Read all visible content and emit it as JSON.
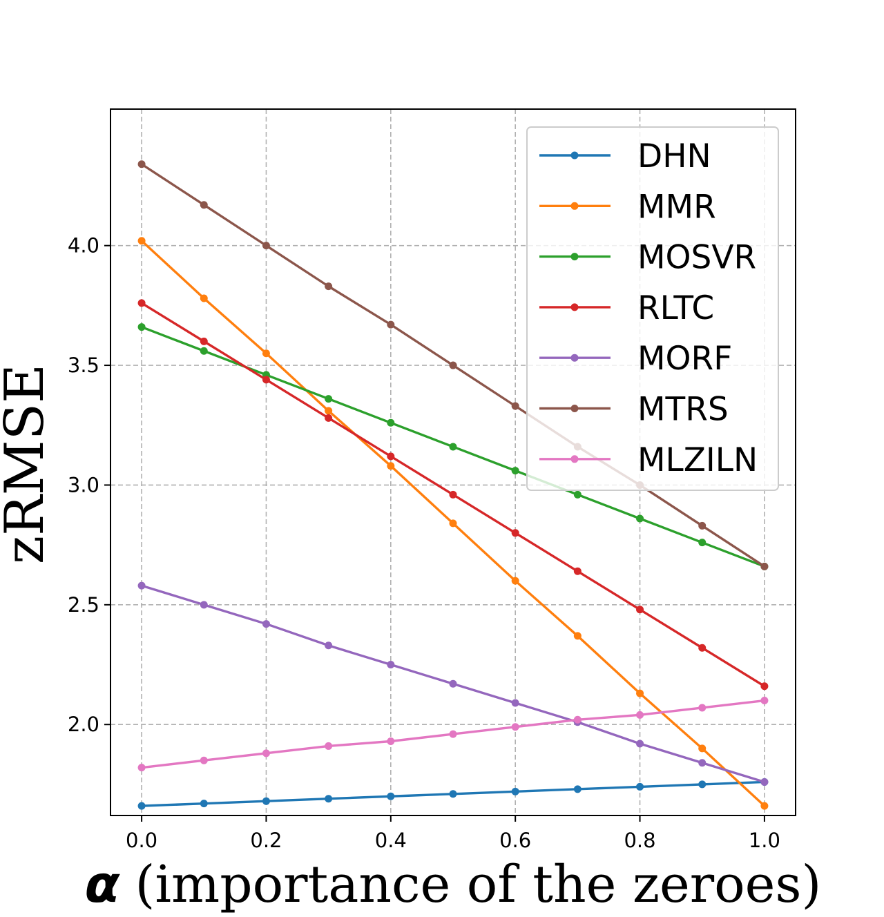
{
  "chart_data": {
    "type": "line",
    "title": "",
    "xlabel_symbol": "α",
    "xlabel": "(importance of the zeroes)",
    "ylabel": "zRMSE",
    "x": [
      0.0,
      0.1,
      0.2,
      0.3,
      0.4,
      0.5,
      0.6,
      0.7,
      0.8,
      0.9,
      1.0
    ],
    "xlim": [
      -0.05,
      1.05
    ],
    "ylim": [
      1.62,
      4.57
    ],
    "xticks": [
      0.0,
      0.2,
      0.4,
      0.6,
      0.8,
      1.0
    ],
    "xtick_labels": [
      "0.0",
      "0.2",
      "0.4",
      "0.6",
      "0.8",
      "1.0"
    ],
    "yticks": [
      2.0,
      2.5,
      3.0,
      3.5,
      4.0
    ],
    "ytick_labels": [
      "2.0",
      "2.5",
      "3.0",
      "3.5",
      "4.0"
    ],
    "grid": true,
    "legend_position": "top-right",
    "series": [
      {
        "name": "DHN",
        "color": "#1f77b4",
        "values": [
          1.66,
          1.67,
          1.68,
          1.69,
          1.7,
          1.71,
          1.72,
          1.73,
          1.74,
          1.75,
          1.76
        ]
      },
      {
        "name": "MMR",
        "color": "#ff7f0e",
        "values": [
          4.02,
          3.78,
          3.55,
          3.31,
          3.08,
          2.84,
          2.6,
          2.37,
          2.13,
          1.9,
          1.66
        ]
      },
      {
        "name": "MOSVR",
        "color": "#2ca02c",
        "values": [
          3.66,
          3.56,
          3.46,
          3.36,
          3.26,
          3.16,
          3.06,
          2.96,
          2.86,
          2.76,
          2.66
        ]
      },
      {
        "name": "RLTC",
        "color": "#d62728",
        "values": [
          3.76,
          3.6,
          3.44,
          3.28,
          3.12,
          2.96,
          2.8,
          2.64,
          2.48,
          2.32,
          2.16
        ]
      },
      {
        "name": "MORF",
        "color": "#9467bd",
        "values": [
          2.58,
          2.5,
          2.42,
          2.33,
          2.25,
          2.17,
          2.09,
          2.01,
          1.92,
          1.84,
          1.76
        ]
      },
      {
        "name": "MTRS",
        "color": "#8c564b",
        "values": [
          4.34,
          4.17,
          4.0,
          3.83,
          3.67,
          3.5,
          3.33,
          3.16,
          3.0,
          2.83,
          2.66
        ]
      },
      {
        "name": "MLZILN",
        "color": "#e377c2",
        "values": [
          1.82,
          1.85,
          1.88,
          1.91,
          1.93,
          1.96,
          1.99,
          2.02,
          2.04,
          2.07,
          2.1
        ]
      }
    ]
  }
}
